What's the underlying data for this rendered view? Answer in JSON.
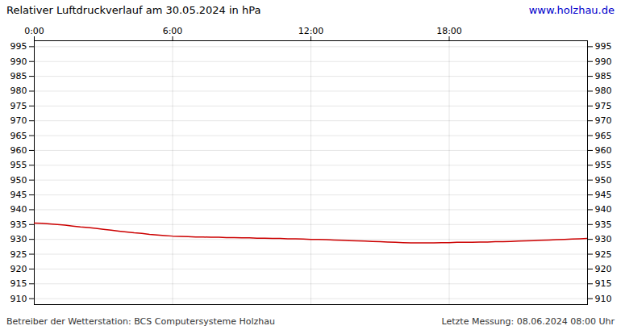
{
  "chart_data": {
    "type": "line",
    "title": "Relativer Luftdruckverlauf am 30.05.2024 in hPa",
    "annotations": [
      "www.holzhau.de",
      "Betreiber der Wetterstation: BCS Computersysteme Holzhau",
      "Letzte Messung: 08.06.2024 08:00 Uhr"
    ],
    "x": [
      0,
      20,
      40,
      60,
      80,
      100,
      120,
      140,
      160,
      180,
      200,
      220,
      240,
      260,
      280,
      300,
      320,
      340,
      360,
      380,
      400,
      420,
      440,
      460,
      480,
      500,
      520,
      540,
      560,
      580,
      600,
      620,
      640,
      660,
      680,
      700,
      720,
      740,
      760,
      780,
      800,
      820,
      840,
      860,
      880,
      900,
      920,
      940,
      960,
      980,
      1000,
      1020,
      1040,
      1060,
      1080,
      1100,
      1120,
      1140,
      1160,
      1180,
      1200,
      1220,
      1240,
      1260,
      1280,
      1300,
      1320,
      1340,
      1360,
      1380,
      1400,
      1420,
      1440
    ],
    "values": [
      935.5,
      935.4,
      935.2,
      935.0,
      934.8,
      934.5,
      934.2,
      934.0,
      933.7,
      933.4,
      933.1,
      932.8,
      932.5,
      932.2,
      932.0,
      931.7,
      931.5,
      931.3,
      931.1,
      931.0,
      930.9,
      930.8,
      930.8,
      930.7,
      930.7,
      930.6,
      930.6,
      930.5,
      930.5,
      930.4,
      930.4,
      930.3,
      930.3,
      930.2,
      930.2,
      930.1,
      930.0,
      930.0,
      929.9,
      929.8,
      929.7,
      929.6,
      929.5,
      929.4,
      929.3,
      929.2,
      929.1,
      929.0,
      928.9,
      928.8,
      928.8,
      928.8,
      928.8,
      928.9,
      928.9,
      929.0,
      929.0,
      929.0,
      929.1,
      929.1,
      929.2,
      929.2,
      929.3,
      929.4,
      929.5,
      929.6,
      929.7,
      929.8,
      929.9,
      930.0,
      930.1,
      930.2,
      930.3
    ],
    "color": "#cc0000",
    "xlim": [
      0,
      1440
    ],
    "xticks": [
      {
        "value": 0,
        "label": "0:00"
      },
      {
        "value": 360,
        "label": "6:00"
      },
      {
        "value": 720,
        "label": "12:00"
      },
      {
        "value": 1080,
        "label": "18:00"
      }
    ],
    "ylim": [
      908,
      997
    ],
    "yticks": [
      910,
      915,
      920,
      925,
      930,
      935,
      940,
      945,
      950,
      955,
      960,
      965,
      970,
      975,
      980,
      985,
      990,
      995
    ],
    "grid": true
  }
}
